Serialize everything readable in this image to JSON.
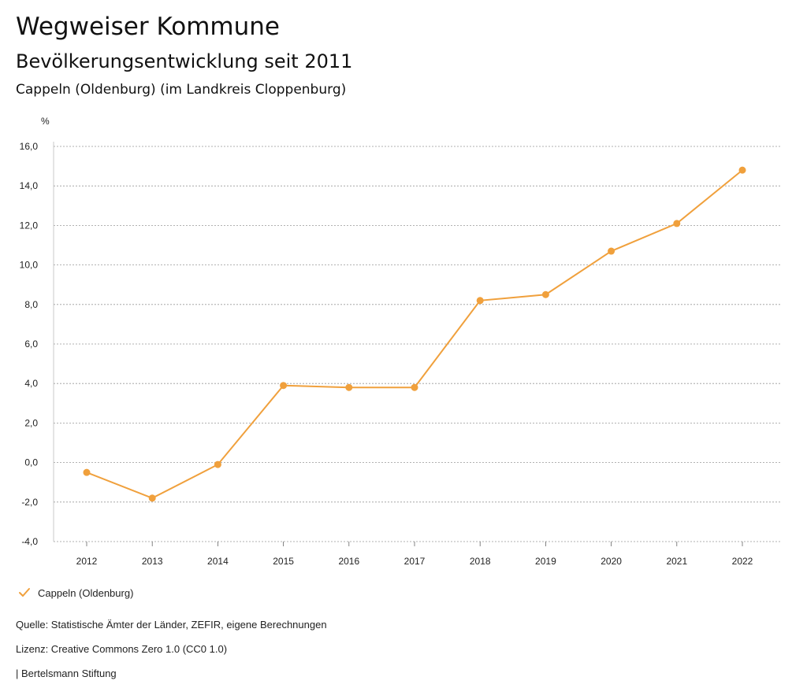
{
  "header": {
    "title": "Wegweiser Kommune",
    "subtitle": "Bevölkerungsentwicklung seit 2011",
    "place": "Cappeln (Oldenburg) (im Landkreis Cloppenburg)"
  },
  "chart_data": {
    "type": "line",
    "ylabel": "%",
    "xlabel": "",
    "ylim": [
      -4.0,
      16.0
    ],
    "yticks": [
      "-4,0",
      "-2,0",
      "0,0",
      "2,0",
      "4,0",
      "6,0",
      "8,0",
      "10,0",
      "12,0",
      "14,0",
      "16,0"
    ],
    "ytick_values": [
      -4,
      -2,
      0,
      2,
      4,
      6,
      8,
      10,
      12,
      14,
      16
    ],
    "categories": [
      "2012",
      "2013",
      "2014",
      "2015",
      "2016",
      "2017",
      "2018",
      "2019",
      "2020",
      "2021",
      "2022"
    ],
    "series": [
      {
        "name": "Cappeln (Oldenburg)",
        "color": "#f0a03c",
        "values": [
          -0.5,
          -1.8,
          -0.1,
          3.9,
          3.8,
          3.8,
          8.2,
          8.5,
          10.7,
          12.1,
          14.8
        ]
      }
    ],
    "grid": true,
    "legend": "bottom-left"
  },
  "footer": {
    "source": "Quelle: Statistische Ämter der Länder, ZEFIR, eigene Berechnungen",
    "license": "Lizenz: Creative Commons Zero 1.0 (CC0 1.0)",
    "publisher": "| Bertelsmann Stiftung"
  },
  "legend_icon": "check-icon"
}
